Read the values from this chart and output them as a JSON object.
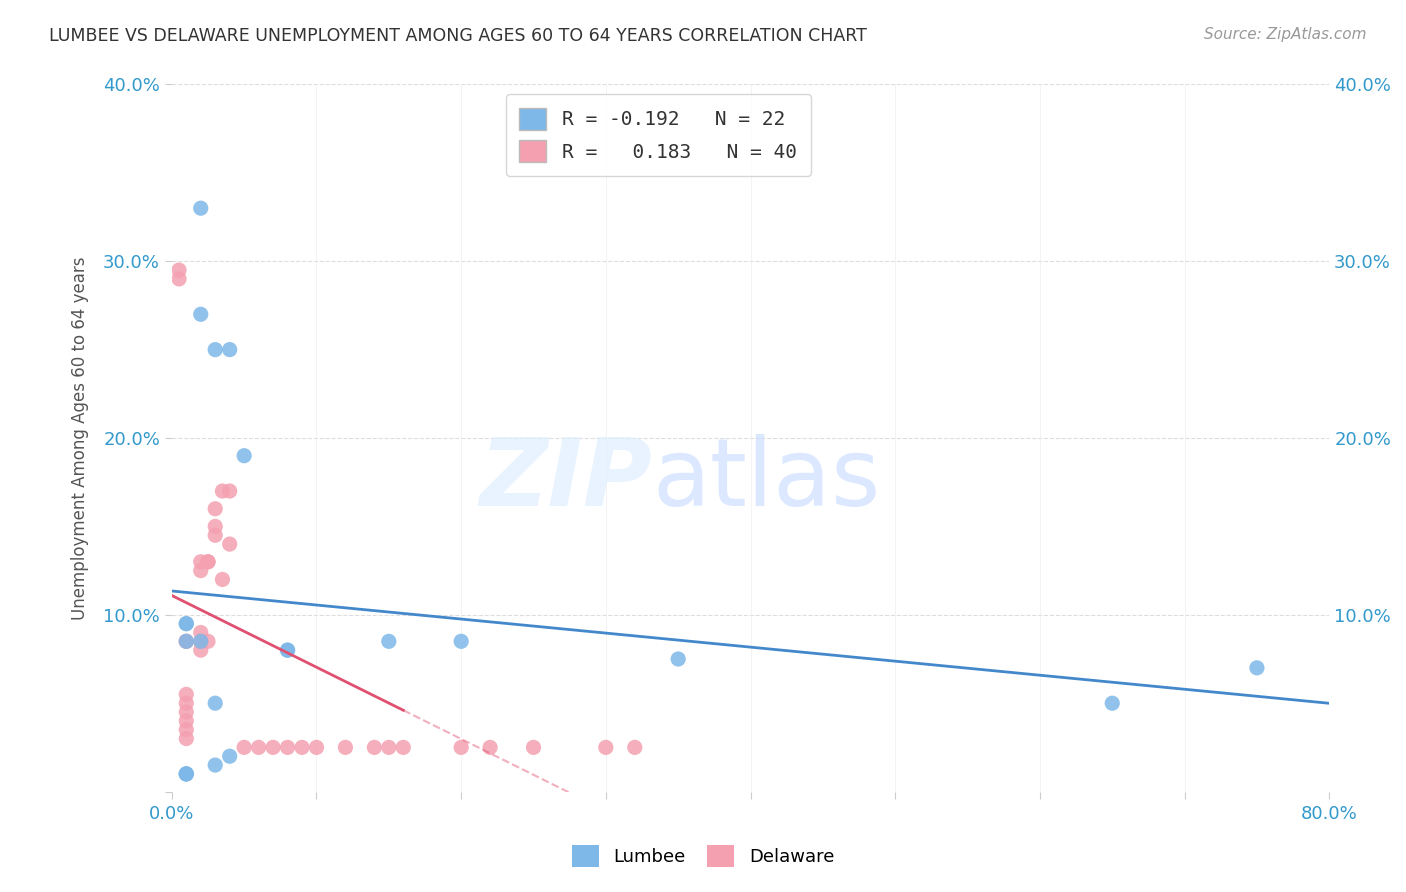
{
  "title": "LUMBEE VS DELAWARE UNEMPLOYMENT AMONG AGES 60 TO 64 YEARS CORRELATION CHART",
  "source": "Source: ZipAtlas.com",
  "ylabel": "Unemployment Among Ages 60 to 64 years",
  "xlim": [
    0.0,
    0.8
  ],
  "ylim": [
    0.0,
    0.4
  ],
  "lumbee_color": "#7EB8E8",
  "delaware_color": "#F4A0B0",
  "lumbee_R": -0.192,
  "lumbee_N": 22,
  "delaware_R": 0.183,
  "delaware_N": 40,
  "lumbee_line_color": "#4488CC",
  "delaware_line_color": "#E05070",
  "lumbee_scatter_x": [
    0.02,
    0.02,
    0.03,
    0.04,
    0.01,
    0.01,
    0.01,
    0.02,
    0.05,
    0.08,
    0.08,
    0.15,
    0.2,
    0.35,
    0.65,
    0.75,
    0.01,
    0.01,
    0.01,
    0.03,
    0.03,
    0.04
  ],
  "lumbee_scatter_y": [
    0.33,
    0.27,
    0.25,
    0.25,
    0.095,
    0.095,
    0.085,
    0.085,
    0.19,
    0.08,
    0.08,
    0.085,
    0.085,
    0.075,
    0.05,
    0.07,
    0.01,
    0.01,
    0.01,
    0.015,
    0.05,
    0.02
  ],
  "delaware_scatter_x": [
    0.005,
    0.005,
    0.01,
    0.01,
    0.01,
    0.01,
    0.01,
    0.01,
    0.01,
    0.01,
    0.02,
    0.02,
    0.02,
    0.02,
    0.02,
    0.025,
    0.025,
    0.025,
    0.03,
    0.03,
    0.03,
    0.035,
    0.035,
    0.04,
    0.04,
    0.05,
    0.06,
    0.07,
    0.08,
    0.09,
    0.1,
    0.12,
    0.14,
    0.15,
    0.16,
    0.2,
    0.22,
    0.25,
    0.3,
    0.32
  ],
  "delaware_scatter_y": [
    0.29,
    0.295,
    0.085,
    0.085,
    0.055,
    0.05,
    0.045,
    0.04,
    0.035,
    0.03,
    0.13,
    0.125,
    0.09,
    0.085,
    0.08,
    0.13,
    0.13,
    0.085,
    0.145,
    0.15,
    0.16,
    0.12,
    0.17,
    0.14,
    0.17,
    0.025,
    0.025,
    0.025,
    0.025,
    0.025,
    0.025,
    0.025,
    0.025,
    0.025,
    0.025,
    0.025,
    0.025,
    0.025,
    0.025,
    0.025
  ],
  "background_color": "#FFFFFF",
  "grid_color": "#DDDDDD"
}
